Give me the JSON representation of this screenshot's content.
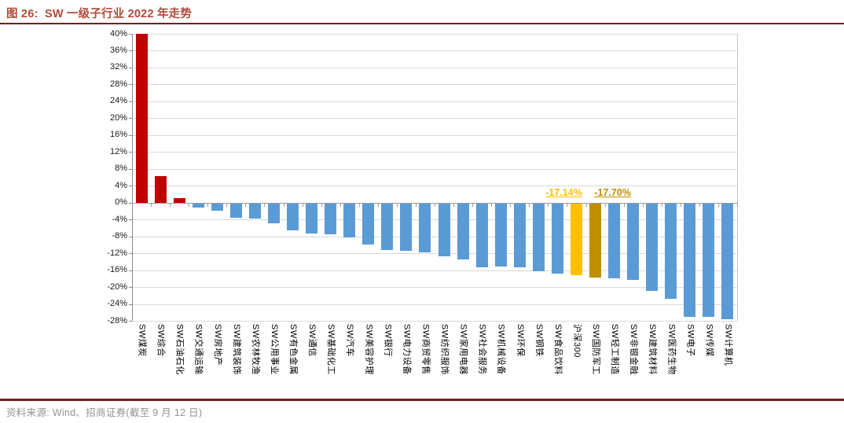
{
  "header": {
    "title": "图 26:  SW 一级子行业 2022 年走势"
  },
  "footer": {
    "source": "资料来源: Wind、招商证券(截至 9 月 12 日)"
  },
  "colors": {
    "title_text": "#B04A3B",
    "rule_line": "#7B1B1B",
    "source_text": "#929292",
    "positive_bar": "#C00000",
    "negative_bar": "#5B9BD5",
    "hs300_bar": "#FFC000",
    "defense_bar": "#BF8F00"
  },
  "chart_data": {
    "type": "bar",
    "title": "SW 一级子行业 2022 年走势",
    "xlabel": "",
    "ylabel": "",
    "ylim": [
      -28,
      40
    ],
    "ytick_step": 4,
    "ytick_labels": [
      "40%",
      "36%",
      "32%",
      "28%",
      "24%",
      "20%",
      "16%",
      "12%",
      "8%",
      "4%",
      "0%",
      "-4%",
      "-8%",
      "-12%",
      "-16%",
      "-20%",
      "-24%",
      "-28%"
    ],
    "grid": true,
    "legend": false,
    "categories": [
      "SW煤炭",
      "SW综合",
      "SW石油石化",
      "SW交通运输",
      "SW房地产",
      "SW建筑装饰",
      "SW农林牧渔",
      "SW公用事业",
      "SW有色金属",
      "SW通信",
      "SW基础化工",
      "SW汽车",
      "SW美容护理",
      "SW银行",
      "SW电力设备",
      "SW商贸零售",
      "SW纺织服饰",
      "SW家用电器",
      "SW社会服务",
      "SW机械设备",
      "SW环保",
      "SW钢铁",
      "SW食品饮料",
      "沪深300",
      "SW国防军工",
      "SW轻工制造",
      "SW非银金融",
      "SW建筑材料",
      "SW医药生物",
      "SW电子",
      "SW传媒",
      "SW计算机"
    ],
    "values": [
      40.0,
      6.3,
      1.0,
      -1.2,
      -2.0,
      -3.6,
      -3.8,
      -4.9,
      -6.6,
      -7.3,
      -7.6,
      -8.2,
      -10.0,
      -11.3,
      -11.5,
      -11.8,
      -12.8,
      -13.4,
      -15.3,
      -15.1,
      -15.3,
      -16.3,
      -16.9,
      -17.14,
      -17.7,
      -18.0,
      -18.4,
      -20.9,
      -22.7,
      -27.0,
      -27.1,
      -27.6
    ],
    "bar_colors": [
      "#C00000",
      "#C00000",
      "#C00000",
      "#5B9BD5",
      "#5B9BD5",
      "#5B9BD5",
      "#5B9BD5",
      "#5B9BD5",
      "#5B9BD5",
      "#5B9BD5",
      "#5B9BD5",
      "#5B9BD5",
      "#5B9BD5",
      "#5B9BD5",
      "#5B9BD5",
      "#5B9BD5",
      "#5B9BD5",
      "#5B9BD5",
      "#5B9BD5",
      "#5B9BD5",
      "#5B9BD5",
      "#5B9BD5",
      "#5B9BD5",
      "#FFC000",
      "#BF8F00",
      "#5B9BD5",
      "#5B9BD5",
      "#5B9BD5",
      "#5B9BD5",
      "#5B9BD5",
      "#5B9BD5",
      "#5B9BD5"
    ],
    "annotations": [
      {
        "text": "-17.14%",
        "category": "沪深300",
        "color": "#FFC000"
      },
      {
        "text": "-17.70%",
        "category": "SW国防军工",
        "color": "#BF8F00"
      }
    ]
  }
}
